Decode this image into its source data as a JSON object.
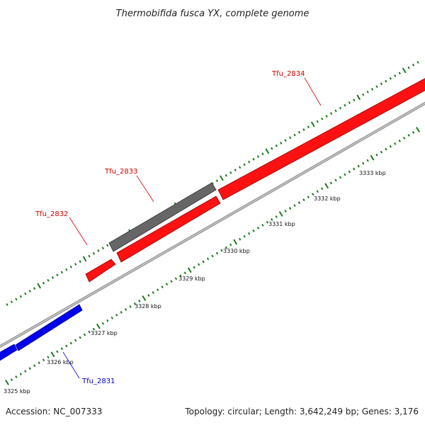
{
  "title": "Thermobifida fusca YX, complete genome",
  "footer": {
    "accession": "Accession: NC_007333",
    "summary": "Topology: circular; Length: 3,642,249 bp; Genes: 3,176"
  },
  "colors": {
    "forward_gene": "#ff0000",
    "reverse_gene": "#0000ff",
    "other_feature": "#666666",
    "backbone": "#888888",
    "ticks": "#1a7a1a",
    "label_forward": "#cc0000",
    "label_reverse": "#0000cc"
  },
  "scale_labels": [
    "3325 kbp",
    "3326 kbp",
    "3327 kbp",
    "3328 kbp",
    "3329 kbp",
    "3330 kbp",
    "3331 kbp",
    "3332 kbp",
    "3333 kbp"
  ],
  "genes": [
    {
      "name": "Tfu_2831",
      "strand": "reverse"
    },
    {
      "name": "Tfu_2832",
      "strand": "forward"
    },
    {
      "name": "Tfu_2833",
      "strand": "forward"
    },
    {
      "name": "Tfu_2834",
      "strand": "forward"
    }
  ]
}
